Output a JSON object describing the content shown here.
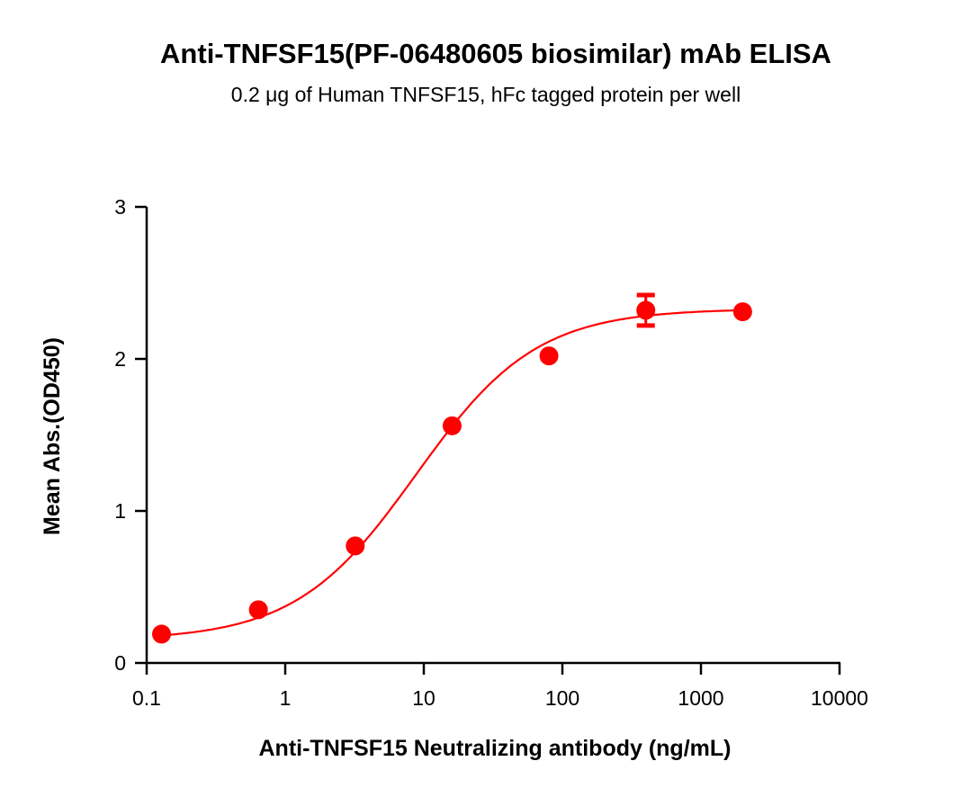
{
  "chart_data": {
    "type": "scatter",
    "title": "Anti-TNFSF15(PF-06480605 biosimilar) mAb ELISA",
    "subtitle": "0.2 μg of Human TNFSF15, hFc tagged protein per well",
    "xlabel": "Anti-TNFSF15 Neutralizing antibody (ng/mL)",
    "ylabel": "Mean Abs.(OD450)",
    "xscale": "log",
    "xlim": [
      0.1,
      10000
    ],
    "ylim": [
      0,
      3
    ],
    "xticks": [
      "0.1",
      "1",
      "10",
      "100",
      "1000",
      "10000"
    ],
    "yticks": [
      "0",
      "1",
      "2",
      "3"
    ],
    "grid": false,
    "color": "#ff0000",
    "fit_curve": "4PL sigmoidal fit",
    "x": [
      0.128,
      0.64,
      3.2,
      16,
      80,
      400,
      2000
    ],
    "y": [
      0.19,
      0.35,
      0.77,
      1.56,
      2.02,
      2.32,
      2.31
    ],
    "error": [
      0,
      0,
      0,
      0,
      0,
      0.1,
      0
    ]
  }
}
